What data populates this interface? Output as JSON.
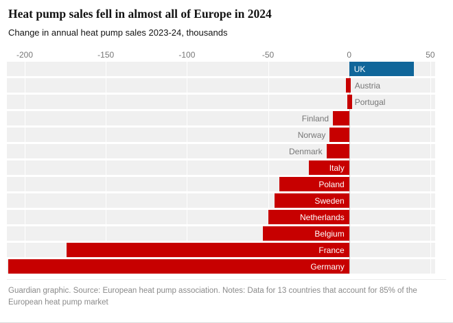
{
  "chart_data": {
    "type": "bar",
    "orientation": "horizontal",
    "title": "Heat pump sales fell in almost all of Europe in 2024",
    "subtitle": "Change in annual heat pump sales 2023-24, thousands",
    "value_unit": "thousands",
    "xlim": [
      -211,
      53
    ],
    "x_ticks": [
      -200,
      -150,
      -100,
      -50,
      0,
      50
    ],
    "grid": true,
    "legend": false,
    "bars": [
      {
        "label": "UK",
        "value": 40,
        "label_placement": "inside"
      },
      {
        "label": "Austria",
        "value": -2,
        "label_placement": "right-of-axis"
      },
      {
        "label": "Portugal",
        "value": -1,
        "label_placement": "right-of-axis"
      },
      {
        "label": "Finland",
        "value": -10,
        "label_placement": "outside-end"
      },
      {
        "label": "Norway",
        "value": -12,
        "label_placement": "outside-end"
      },
      {
        "label": "Denmark",
        "value": -14,
        "label_placement": "outside-end"
      },
      {
        "label": "Italy",
        "value": -25,
        "label_placement": "inside"
      },
      {
        "label": "Poland",
        "value": -43,
        "label_placement": "inside"
      },
      {
        "label": "Sweden",
        "value": -46,
        "label_placement": "inside"
      },
      {
        "label": "Netherlands",
        "value": -50,
        "label_placement": "inside"
      },
      {
        "label": "Belgium",
        "value": -53,
        "label_placement": "inside"
      },
      {
        "label": "France",
        "value": -174,
        "label_placement": "inside"
      },
      {
        "label": "Germany",
        "value": -210,
        "label_placement": "inside"
      }
    ],
    "colors": {
      "positive_bar": "#10669a",
      "negative_bar": "#c70000",
      "row_background": "#f0f0f0",
      "gridline": "#ffffff",
      "zero_line": "#c9c9c9",
      "outside_label": "#767676",
      "inside_label": "#ffffff",
      "tick_label": "#767676"
    },
    "source_note": "Guardian graphic. Source: European heat pump association. Notes: Data for 13 countries that account for 85% of the European heat pump market"
  }
}
